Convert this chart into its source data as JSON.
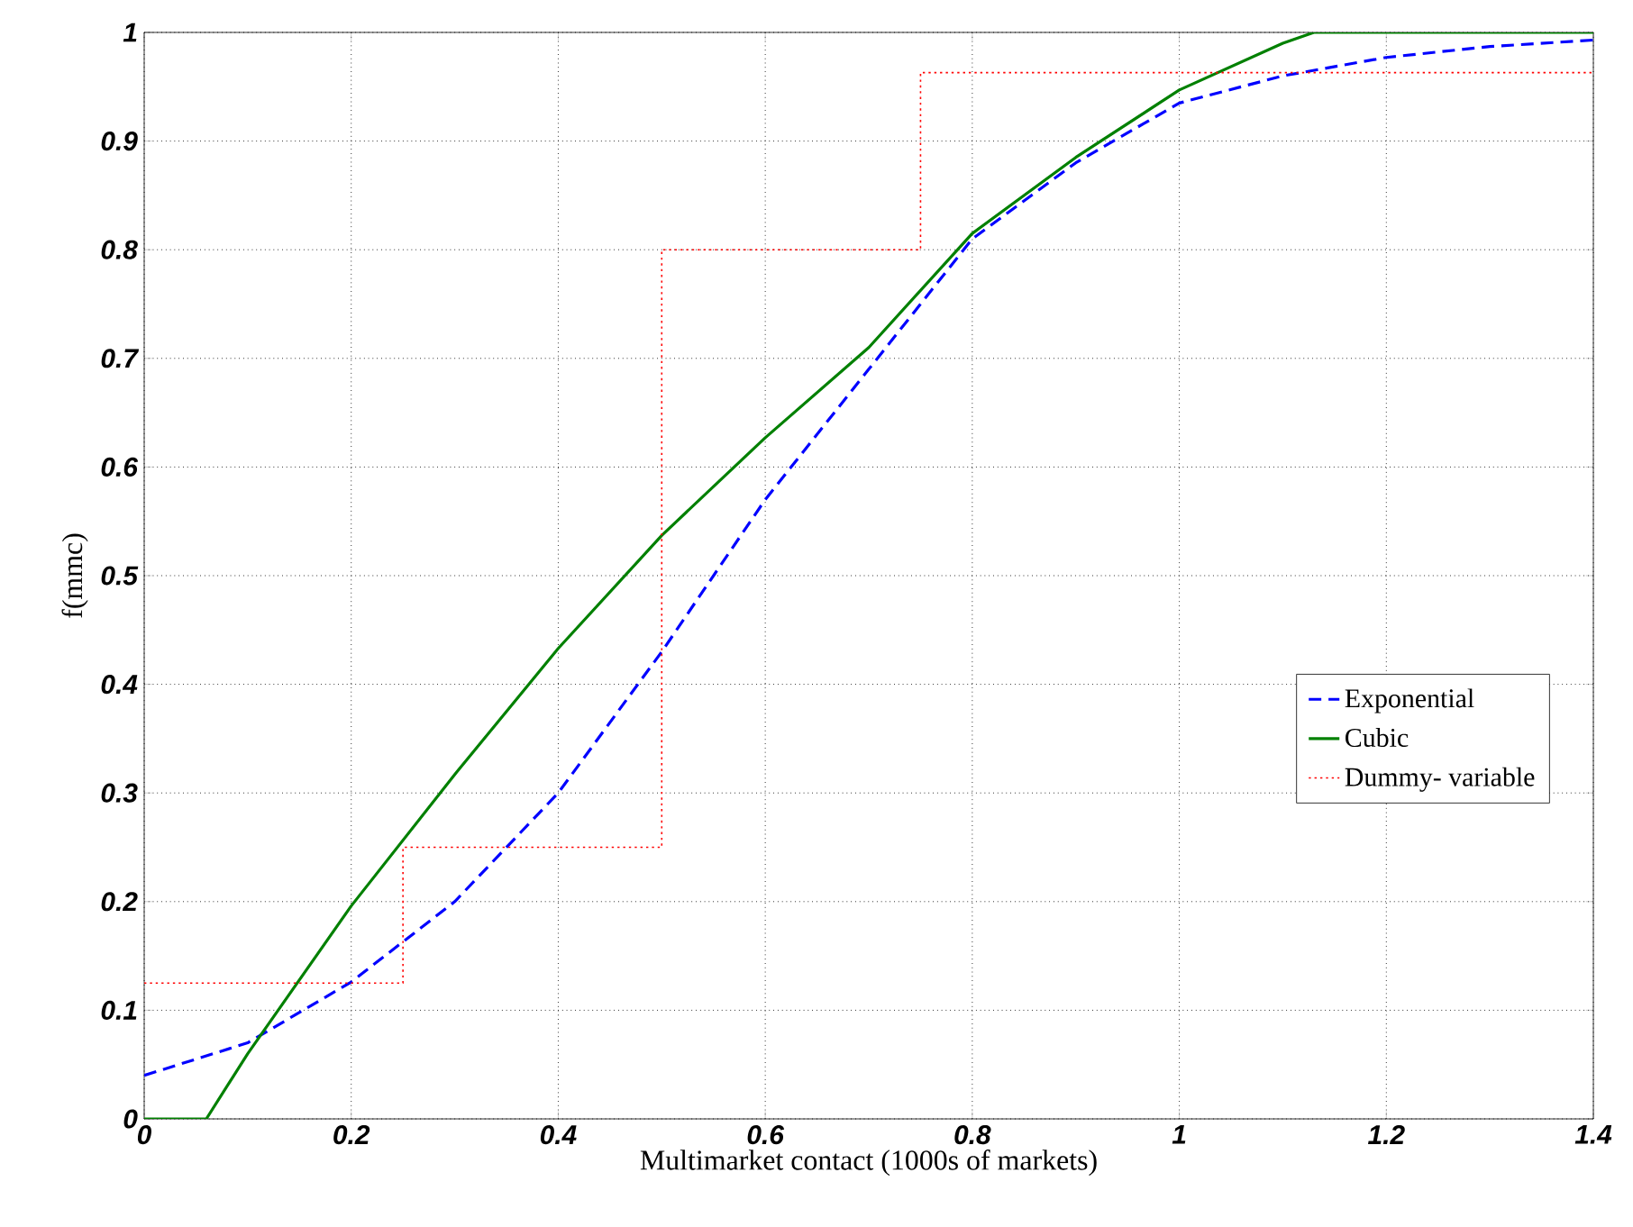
{
  "chart_data": {
    "type": "line",
    "xlabel": "Multimarket contact (1000s of markets)",
    "ylabel": "f(mmc)",
    "xlim": [
      0,
      1.4
    ],
    "ylim": [
      0,
      1
    ],
    "xticks": [
      0,
      0.2,
      0.4,
      0.6,
      0.8,
      1,
      1.2,
      1.4
    ],
    "yticks": [
      0,
      0.1,
      0.2,
      0.3,
      0.4,
      0.5,
      0.6,
      0.7,
      0.8,
      0.9,
      1
    ],
    "grid": true,
    "legend": "right",
    "series": [
      {
        "name": "Exponential",
        "color": "#0000ff",
        "line_style": "dashed",
        "x": [
          0,
          0.1,
          0.2,
          0.3,
          0.4,
          0.5,
          0.6,
          0.7,
          0.8,
          0.9,
          1.0,
          1.1,
          1.2,
          1.3,
          1.4
        ],
        "values": [
          0.04,
          0.07,
          0.126,
          0.2,
          0.3,
          0.43,
          0.57,
          0.69,
          0.81,
          0.88,
          0.935,
          0.96,
          0.977,
          0.987,
          0.993
        ]
      },
      {
        "name": "Cubic",
        "color": "#008000",
        "line_style": "solid",
        "x": [
          0,
          0.06,
          0.1,
          0.2,
          0.3,
          0.4,
          0.5,
          0.6,
          0.7,
          0.8,
          0.9,
          1.0,
          1.1,
          1.13,
          1.2,
          1.4
        ],
        "values": [
          0,
          0,
          0.06,
          0.196,
          0.317,
          0.433,
          0.537,
          0.627,
          0.71,
          0.815,
          0.885,
          0.947,
          0.99,
          1,
          1,
          1
        ]
      },
      {
        "name": "Dummy- variable",
        "color": "#ff0000",
        "type": "step",
        "line_style": "dotted",
        "x": [
          0,
          0.25,
          0.5,
          0.75,
          1.4
        ],
        "values": [
          0.125,
          0.25,
          0.8,
          0.963,
          0.963
        ]
      }
    ]
  }
}
